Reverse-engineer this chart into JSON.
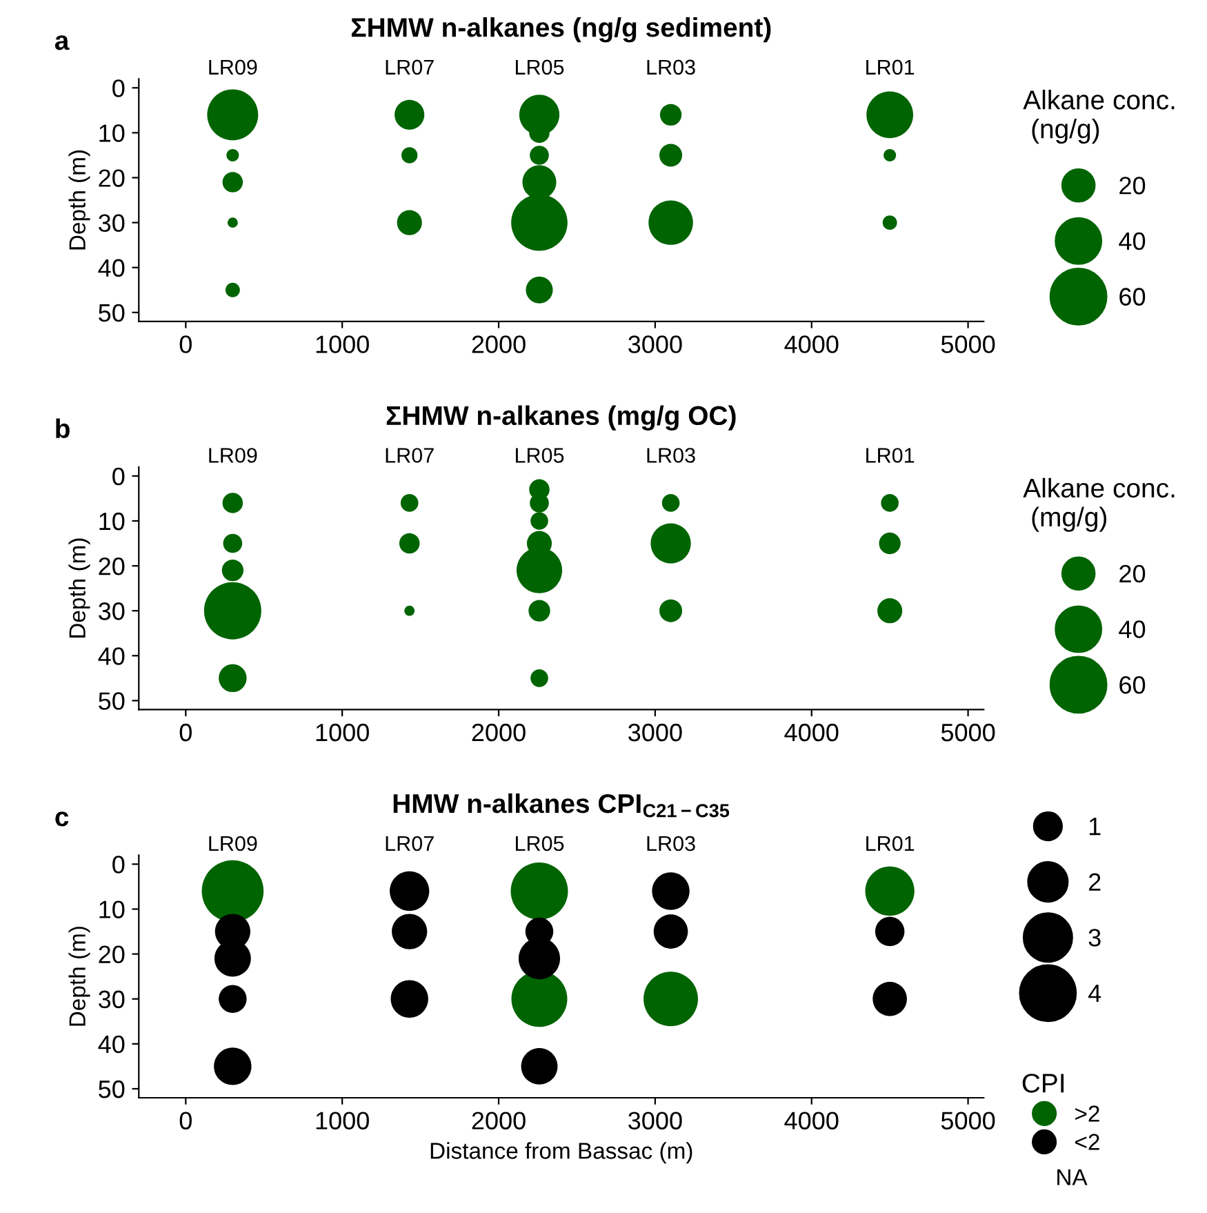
{
  "chart_data": [
    {
      "type": "bubble",
      "title": "ΣHMW n-alkanes (ng/g sediment)",
      "ylabel": "Depth (m)",
      "legend_title": "Alkane conc.\n (ng/g)",
      "xlim": [
        -300,
        5100
      ],
      "ylim": [
        52,
        -2
      ],
      "xticks": [
        0,
        1000,
        2000,
        3000,
        4000,
        5000
      ],
      "yticks": [
        0,
        10,
        20,
        30,
        40,
        50
      ],
      "grid": false,
      "size_legend": [
        20,
        40,
        60
      ],
      "annotations": [
        "a",
        "LR09",
        "LR07",
        "LR05",
        "LR03",
        "LR01"
      ],
      "series": [
        {
          "color": "#006400",
          "x": [
            300,
            300,
            300,
            300,
            300,
            1430,
            1430,
            1430,
            2260,
            2260,
            2260,
            2260,
            2260,
            2260,
            3100,
            3100,
            3100,
            4500,
            4500,
            4500
          ],
          "values": [
            6,
            15,
            21,
            30,
            45,
            6,
            15,
            30,
            6,
            10,
            15,
            21,
            30,
            45,
            6,
            15,
            30,
            6,
            15,
            30
          ],
          "sizes": [
            50,
            3,
            8,
            2,
            4,
            17,
            5,
            12,
            31,
            8,
            7,
            22,
            61,
            14,
            9,
            10,
            38,
            42,
            3,
            4
          ]
        }
      ]
    },
    {
      "type": "bubble",
      "title": "ΣHMW n-alkanes (mg/g OC)",
      "ylabel": "Depth (m)",
      "legend_title": "Alkane conc.\n (mg/g)",
      "xlim": [
        -300,
        5100
      ],
      "ylim": [
        52,
        -2
      ],
      "xticks": [
        0,
        1000,
        2000,
        3000,
        4000,
        5000
      ],
      "yticks": [
        0,
        10,
        20,
        30,
        40,
        50
      ],
      "grid": false,
      "size_legend": [
        20,
        40,
        60
      ],
      "annotations": [
        "b",
        "LR09",
        "LR07",
        "LR05",
        "LR03",
        "LR01"
      ],
      "series": [
        {
          "color": "#006400",
          "x": [
            300,
            300,
            300,
            300,
            300,
            1430,
            1430,
            1430,
            2260,
            2260,
            2260,
            2260,
            2260,
            2260,
            2260,
            3100,
            3100,
            3100,
            4500,
            4500,
            4500
          ],
          "values": [
            6,
            15,
            21,
            30,
            45,
            6,
            15,
            30,
            3,
            6,
            10,
            15,
            21,
            30,
            45,
            6,
            15,
            30,
            6,
            15,
            30
          ],
          "sizes": [
            8,
            7,
            9,
            63,
            15,
            6,
            8,
            2,
            8,
            7,
            6,
            12,
            40,
            9,
            6,
            6,
            31,
            10,
            6,
            9,
            12
          ]
        }
      ]
    },
    {
      "type": "bubble",
      "title": "HMW n-alkanes CPI$_{C21−C35}$",
      "xlabel": "Distance from Bassac (m)",
      "ylabel": "Depth (m)",
      "legend_title": "CPI",
      "xlim": [
        -300,
        5100
      ],
      "ylim": [
        52,
        -2
      ],
      "xticks": [
        0,
        1000,
        2000,
        3000,
        4000,
        5000
      ],
      "yticks": [
        0,
        10,
        20,
        30,
        40,
        50
      ],
      "grid": false,
      "legend": "right",
      "size_legend": [
        1,
        2,
        3,
        4
      ],
      "annotations": [
        "c",
        "LR09",
        "LR07",
        "LR05",
        "LR03",
        "LR01",
        "NA"
      ],
      "series": [
        {
          "name": ">2",
          "color": "#006400",
          "x": [
            300,
            2260,
            2260,
            3100,
            4500
          ],
          "values": [
            6,
            6,
            30,
            30,
            6
          ],
          "sizes": [
            4.9,
            4.2,
            4.0,
            3.8,
            3.1
          ]
        },
        {
          "name": "<2",
          "color": "#000000",
          "x": [
            300,
            300,
            300,
            300,
            1430,
            1430,
            1430,
            2260,
            2260,
            2260,
            3100,
            3100,
            4500,
            4500
          ],
          "values": [
            15,
            21,
            30,
            45,
            6,
            15,
            30,
            15,
            21,
            45,
            6,
            15,
            15,
            30
          ],
          "sizes": [
            1.6,
            1.7,
            1.0,
            1.8,
            2.0,
            1.6,
            1.8,
            1.0,
            2.2,
            1.7,
            1.8,
            1.5,
            1.1,
            1.5
          ]
        }
      ]
    }
  ]
}
